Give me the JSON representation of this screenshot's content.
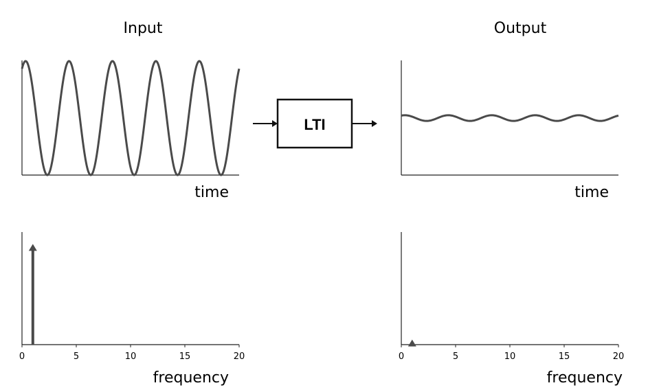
{
  "titles": {
    "input": "Input",
    "output": "Output"
  },
  "system_label": "LTI",
  "time_axis_label": "time",
  "frequency_axis_label": "frequency",
  "chart_data": [
    {
      "type": "line",
      "panel": "input-time",
      "xlabel": "time",
      "signal": "sinusoid",
      "cycles": 5,
      "amplitude": 1.0,
      "ylim": [
        -1,
        1
      ]
    },
    {
      "type": "line",
      "panel": "output-time",
      "xlabel": "time",
      "signal": "sinusoid",
      "cycles": 5,
      "amplitude": 0.05,
      "ylim": [
        -1,
        1
      ]
    },
    {
      "type": "bar",
      "panel": "input-frequency",
      "xlabel": "frequency",
      "xlim": [
        0,
        20
      ],
      "xticks": [
        0,
        5,
        10,
        15,
        20
      ],
      "impulses": [
        {
          "x": 1,
          "y": 1.0
        }
      ],
      "ylim": [
        0,
        1.05
      ]
    },
    {
      "type": "bar",
      "panel": "output-frequency",
      "xlabel": "frequency",
      "xlim": [
        0,
        20
      ],
      "xticks": [
        0,
        5,
        10,
        15,
        20
      ],
      "impulses": [
        {
          "x": 1,
          "y": 0.05
        }
      ],
      "ylim": [
        0,
        1.05
      ]
    }
  ]
}
